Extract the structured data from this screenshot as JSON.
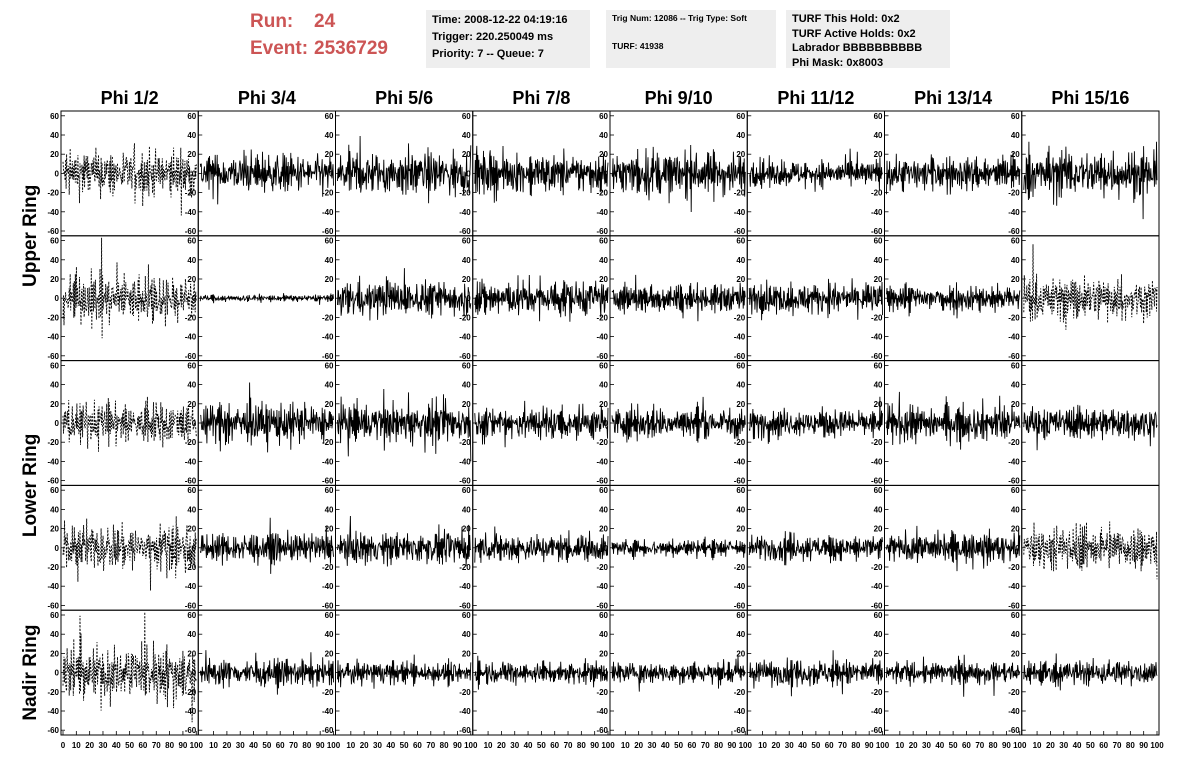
{
  "header": {
    "run_label": "Run:",
    "run_value": "24",
    "event_label": "Event:",
    "event_value": "2536729"
  },
  "info_time": {
    "time": "Time: 2008-12-22 04:19:16",
    "trigger": "Trigger: 220.250049 ms",
    "priority": "Priority: 7 -- Queue: 7"
  },
  "info_trig": {
    "trig": "Trig Num: 12086 -- Trig Type: Soft",
    "turf": "TURF: 41938"
  },
  "info_turf": {
    "hold": "TURF This Hold: 0x2",
    "active": "TURF Active Holds: 0x2",
    "labrador": "Labrador BBBBBBBBBB",
    "mask": "Phi Mask: 0x8003"
  },
  "colors": {
    "run_text": "#cc5555",
    "info_bg": "#eeeeee",
    "trace": "#000000"
  },
  "chart_data": {
    "type": "line",
    "columns": [
      "Phi 1/2",
      "Phi 3/4",
      "Phi 5/6",
      "Phi 7/8",
      "Phi 9/10",
      "Phi 11/12",
      "Phi 13/14",
      "Phi 15/16"
    ],
    "row_labels": [
      "Upper Ring",
      "Lower Ring",
      "Nadir Ring"
    ],
    "sub_rows": 5,
    "x_ticks": [
      "0",
      "10",
      "20",
      "30",
      "40",
      "50",
      "60",
      "70",
      "80",
      "90",
      "100"
    ],
    "y_ticks": [
      "60",
      "40",
      "20",
      "0",
      "-20",
      "-40",
      "-60"
    ],
    "xlim": [
      0,
      100
    ],
    "ylim": [
      -65,
      65
    ],
    "samples": 260,
    "dashed_panels": [
      [
        0,
        0
      ],
      [
        1,
        0
      ],
      [
        1,
        7
      ],
      [
        2,
        0
      ],
      [
        3,
        0
      ],
      [
        3,
        7
      ],
      [
        4,
        0
      ]
    ],
    "amplitudes": [
      [
        22,
        18,
        20,
        18,
        20,
        12,
        16,
        22
      ],
      [
        22,
        3,
        16,
        17,
        13,
        14,
        13,
        20
      ],
      [
        20,
        18,
        17,
        16,
        15,
        13,
        16,
        14
      ],
      [
        22,
        13,
        14,
        13,
        8,
        12,
        13,
        20
      ],
      [
        26,
        12,
        10,
        10,
        10,
        12,
        10,
        12
      ]
    ]
  }
}
